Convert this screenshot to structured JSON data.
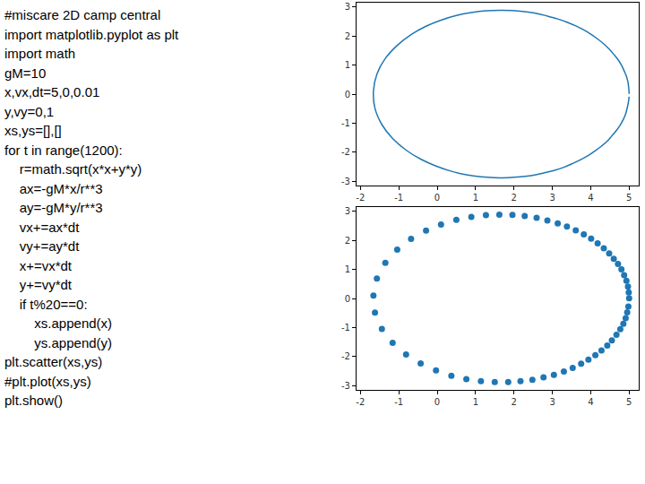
{
  "code": {
    "lines": [
      "#miscare 2D camp central",
      "import matplotlib.pyplot as plt",
      "import math",
      "gM=10",
      "x,vx,dt=5,0,0.01",
      "y,vy=0,1",
      "xs,ys=[],[]",
      "for t in range(1200):",
      "    r=math.sqrt(x*x+y*y)",
      "    ax=-gM*x/r**3",
      "    ay=-gM*y/r**3",
      "    vx+=ax*dt",
      "    vy+=ay*dt",
      "    x+=vx*dt",
      "    y+=vy*dt",
      "    if t%20==0:",
      "        xs.append(x)",
      "        ys.append(y)",
      "plt.scatter(xs,ys)",
      "#plt.plot(xs,ys)",
      "plt.show()"
    ]
  },
  "chart_data": [
    {
      "type": "line",
      "color": "#1f77b4",
      "line_style": "solid",
      "grid": false,
      "xlim": [
        -2.1,
        5.25
      ],
      "ylim": [
        -3.15,
        3.15
      ],
      "xticks": [
        -2,
        -1,
        0,
        1,
        2,
        3,
        4,
        5
      ],
      "yticks": [
        -3,
        -2,
        -1,
        0,
        1,
        2,
        3
      ],
      "x": [
        5.0,
        4.99,
        4.97,
        4.93,
        4.87,
        4.8,
        4.71,
        4.6,
        4.48,
        4.34,
        4.18,
        4.01,
        3.82,
        3.61,
        3.38,
        3.14,
        2.87,
        2.59,
        2.28,
        1.96,
        1.62,
        1.27,
        0.89,
        0.5,
        0.1,
        -0.29,
        -0.68,
        -1.04,
        -1.35,
        -1.57,
        -1.66,
        -1.62,
        -1.44,
        -1.16,
        -0.81,
        -0.43,
        -0.03,
        0.37,
        0.76,
        1.14,
        1.5,
        1.85,
        2.17,
        2.48,
        2.77,
        3.04,
        3.3,
        3.53,
        3.75,
        3.94,
        4.12,
        4.28,
        4.43,
        4.55,
        4.67,
        4.77,
        4.85,
        4.91,
        4.95,
        4.98,
        5.0
      ],
      "values": [
        0.01,
        0.21,
        0.41,
        0.61,
        0.8,
        1.0,
        1.19,
        1.37,
        1.55,
        1.73,
        1.9,
        2.06,
        2.21,
        2.35,
        2.48,
        2.59,
        2.69,
        2.78,
        2.84,
        2.88,
        2.89,
        2.87,
        2.81,
        2.71,
        2.55,
        2.34,
        2.05,
        1.68,
        1.23,
        0.69,
        0.1,
        -0.49,
        -1.05,
        -1.53,
        -1.93,
        -2.24,
        -2.48,
        -2.66,
        -2.78,
        -2.85,
        -2.88,
        -2.88,
        -2.85,
        -2.8,
        -2.72,
        -2.63,
        -2.52,
        -2.39,
        -2.25,
        -2.11,
        -1.95,
        -1.79,
        -1.62,
        -1.44,
        -1.25,
        -1.06,
        -0.87,
        -0.68,
        -0.48,
        -0.28,
        -0.09
      ]
    },
    {
      "type": "scatter",
      "color": "#1f77b4",
      "marker": "circle",
      "grid": false,
      "xlim": [
        -2.1,
        5.25
      ],
      "ylim": [
        -3.15,
        3.15
      ],
      "xticks": [
        -2,
        -1,
        0,
        1,
        2,
        3,
        4,
        5
      ],
      "yticks": [
        -3,
        -2,
        -1,
        0,
        1,
        2,
        3
      ],
      "x": [
        5.0,
        4.99,
        4.97,
        4.93,
        4.87,
        4.8,
        4.71,
        4.6,
        4.48,
        4.34,
        4.18,
        4.01,
        3.82,
        3.61,
        3.38,
        3.14,
        2.87,
        2.59,
        2.28,
        1.96,
        1.62,
        1.27,
        0.89,
        0.5,
        0.1,
        -0.29,
        -0.68,
        -1.04,
        -1.35,
        -1.57,
        -1.66,
        -1.62,
        -1.44,
        -1.16,
        -0.81,
        -0.43,
        -0.03,
        0.37,
        0.76,
        1.14,
        1.5,
        1.85,
        2.17,
        2.48,
        2.77,
        3.04,
        3.3,
        3.53,
        3.75,
        3.94,
        4.12,
        4.28,
        4.43,
        4.55,
        4.67,
        4.77,
        4.85,
        4.91,
        4.95,
        4.98
      ],
      "values": [
        0.01,
        0.21,
        0.41,
        0.61,
        0.8,
        1.0,
        1.19,
        1.37,
        1.55,
        1.73,
        1.9,
        2.06,
        2.21,
        2.35,
        2.48,
        2.59,
        2.69,
        2.78,
        2.84,
        2.88,
        2.89,
        2.87,
        2.81,
        2.71,
        2.55,
        2.34,
        2.05,
        1.68,
        1.23,
        0.69,
        0.1,
        -0.49,
        -1.05,
        -1.53,
        -1.93,
        -2.24,
        -2.48,
        -2.66,
        -2.78,
        -2.85,
        -2.88,
        -2.88,
        -2.85,
        -2.8,
        -2.72,
        -2.63,
        -2.52,
        -2.39,
        -2.25,
        -2.11,
        -1.95,
        -1.79,
        -1.62,
        -1.44,
        -1.25,
        -1.06,
        -0.87,
        -0.68,
        -0.48,
        -0.28
      ]
    }
  ]
}
